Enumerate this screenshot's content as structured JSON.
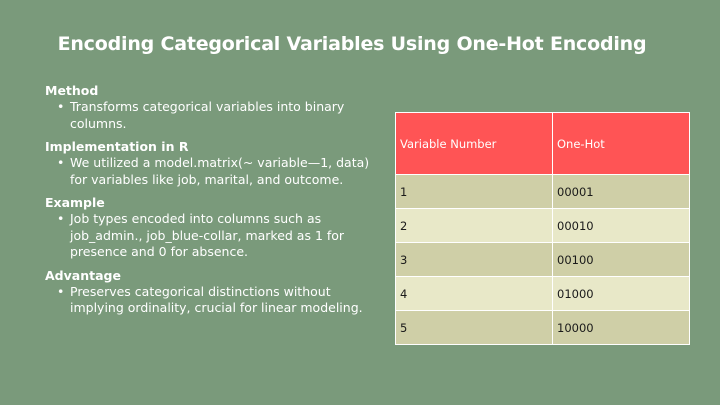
{
  "title": "Encoding Categorical Variables Using One-Hot Encoding",
  "sections": [
    {
      "heading": "Method",
      "text": "Transforms categorical variables into binary columns."
    },
    {
      "heading": "Implementation in R",
      "text": "We utilized a model.matrix(~ variable—1, data) for variables like job, marital, and outcome."
    },
    {
      "heading": "Example",
      "text": "Job types encoded into columns such as job_admin., job_blue-collar, marked as 1 for presence and 0 for absence."
    },
    {
      "heading": "Advantage",
      "text": "Preserves categorical distinctions without implying ordinality, crucial for linear modeling."
    }
  ],
  "table": {
    "headers": [
      "Variable Number",
      "One-Hot"
    ],
    "rows": [
      [
        "1",
        "00001"
      ],
      [
        "2",
        "00010"
      ],
      [
        "3",
        "00100"
      ],
      [
        "4",
        "01000"
      ],
      [
        "5",
        "10000"
      ]
    ]
  },
  "colors": {
    "background": "#7a9a7b",
    "header": "#ff5455",
    "row_odd": "#cfcfa7",
    "row_even": "#e8e8c8"
  }
}
